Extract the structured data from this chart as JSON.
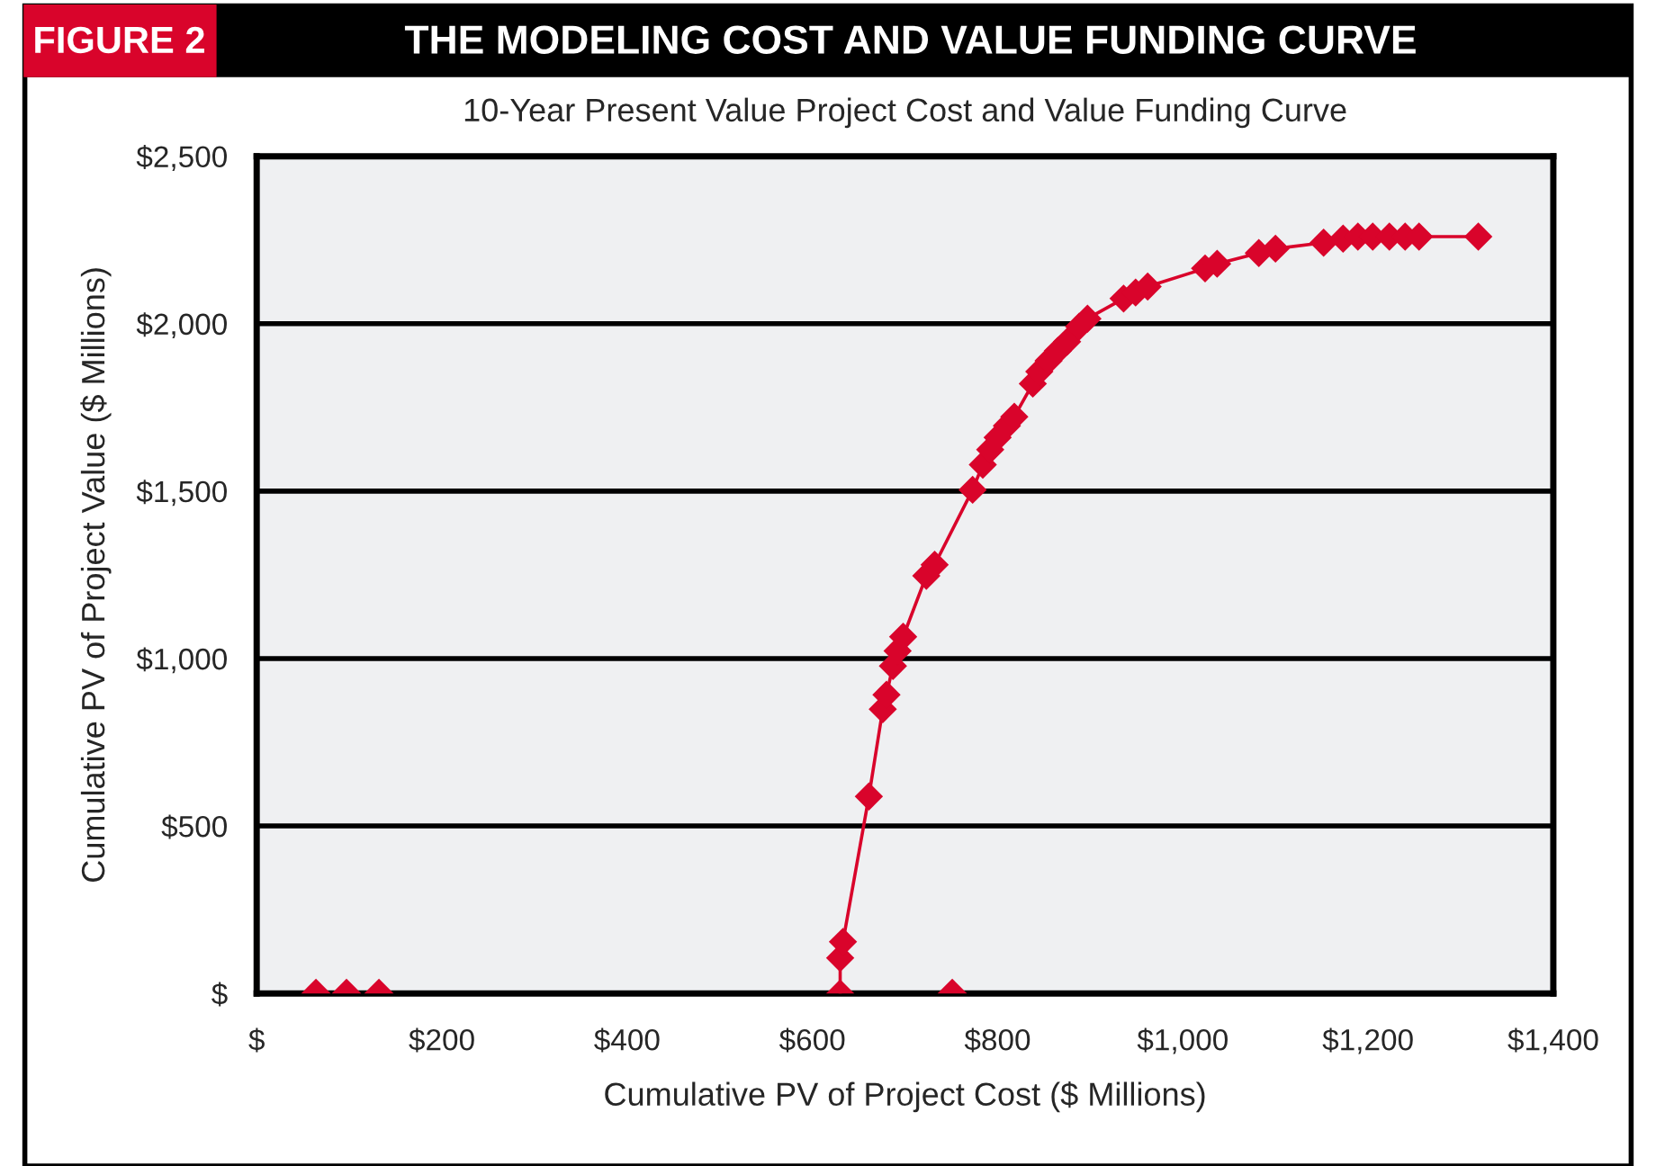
{
  "chart_data": {
    "type": "line",
    "title": "THE MODELING COST AND VALUE FUNDING CURVE",
    "subtitle": "10-Year Present Value Project Cost and Value Funding Curve",
    "xlabel": "Cumulative PV of Project Cost ($ Millions)",
    "ylabel": "Cumulative PV of Project Value ($ Millions)",
    "annotations": [
      "FIGURE 2"
    ],
    "series": [
      {
        "color": "#d9042b",
        "x": [
          630,
          630,
          633,
          661,
          676,
          680,
          687,
          692,
          698,
          723,
          732,
          773,
          784,
          792,
          800,
          810,
          818,
          838,
          845,
          855,
          865,
          875,
          888,
          897,
          936,
          949,
          962,
          1024,
          1037,
          1082,
          1100,
          1152,
          1173,
          1189,
          1205,
          1223,
          1240,
          1255,
          1319
        ],
        "values": [
          0,
          106,
          154,
          588,
          849,
          892,
          978,
          1023,
          1065,
          1247,
          1280,
          1504,
          1579,
          1624,
          1660,
          1695,
          1722,
          1821,
          1857,
          1889,
          1919,
          1946,
          1991,
          2015,
          2075,
          2093,
          2111,
          2165,
          2179,
          2211,
          2224,
          2242,
          2254,
          2260,
          2260,
          2260,
          2260,
          2260,
          2260
        ]
      },
      {
        "type": "scatter",
        "color": "#d9042b",
        "x": [
          64,
          97,
          132,
          751
        ],
        "values": [
          0,
          0,
          0,
          0
        ]
      }
    ],
    "marker": "diamond",
    "line_style": "solid",
    "grid": "y",
    "xlim": [
      0,
      1400
    ],
    "xticks": [
      {
        "value": 0,
        "label": "$"
      },
      {
        "value": 200,
        "label": "$200"
      },
      {
        "value": 400,
        "label": "$400"
      },
      {
        "value": 600,
        "label": "$600"
      },
      {
        "value": 800,
        "label": "$800"
      },
      {
        "value": 1000,
        "label": "$1,000"
      },
      {
        "value": 1200,
        "label": "$1,200"
      },
      {
        "value": 1400,
        "label": "$1,400"
      }
    ],
    "ylim": [
      0,
      2500
    ],
    "yticks": [
      {
        "value": 0,
        "label": "$"
      },
      {
        "value": 500,
        "label": "$500"
      },
      {
        "value": 1000,
        "label": "$1,000"
      },
      {
        "value": 1500,
        "label": "$1,500"
      },
      {
        "value": 2000,
        "label": "$2,000"
      },
      {
        "value": 2500,
        "label": "$2,500"
      }
    ]
  }
}
